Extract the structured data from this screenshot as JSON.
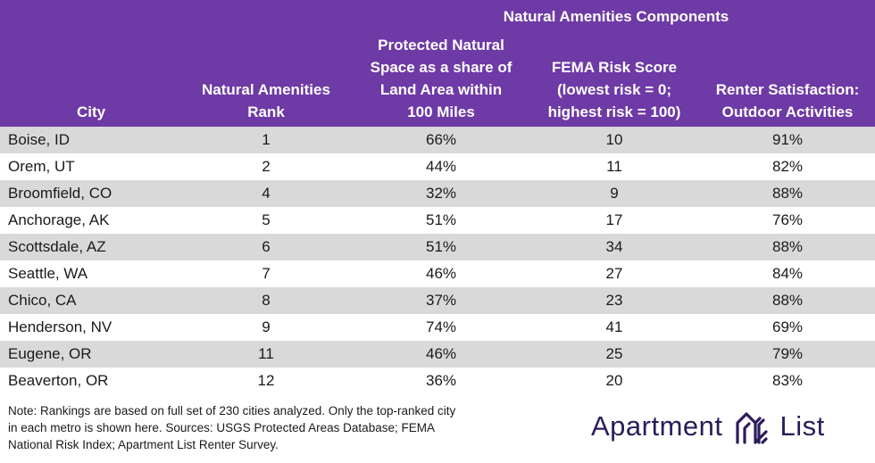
{
  "header": {
    "super_label": "Natural Amenities Components",
    "columns": [
      [
        "City"
      ],
      [
        "Natural Amenities",
        "Rank"
      ],
      [
        "Protected Natural",
        "Space as a share of",
        "Land Area within",
        "100 Miles"
      ],
      [
        "FEMA Risk Score",
        "(lowest risk = 0;",
        "highest risk = 100)"
      ],
      [
        "Renter Satisfaction:",
        "Outdoor Activities"
      ]
    ]
  },
  "rows": [
    [
      "Boise, ID",
      "1",
      "66%",
      "10",
      "91%"
    ],
    [
      "Orem, UT",
      "2",
      "44%",
      "11",
      "82%"
    ],
    [
      "Broomfield, CO",
      "4",
      "32%",
      "9",
      "88%"
    ],
    [
      "Anchorage, AK",
      "5",
      "51%",
      "17",
      "76%"
    ],
    [
      "Scottsdale, AZ",
      "6",
      "51%",
      "34",
      "88%"
    ],
    [
      "Seattle, WA",
      "7",
      "46%",
      "27",
      "84%"
    ],
    [
      "Chico, CA",
      "8",
      "37%",
      "23",
      "88%"
    ],
    [
      "Henderson, NV",
      "9",
      "74%",
      "41",
      "69%"
    ],
    [
      "Eugene, OR",
      "11",
      "46%",
      "25",
      "79%"
    ],
    [
      "Beaverton, OR",
      "12",
      "36%",
      "20",
      "83%"
    ]
  ],
  "note": {
    "lines": [
      "Note: Rankings are based on full set of 230 cities analyzed. Only the top-ranked city",
      "in each metro is shown here. Sources: USGS Protected Areas Database; FEMA",
      "National Risk Index; Apartment List Renter Survey."
    ]
  },
  "logo": {
    "word_left": "Apartment",
    "word_right": "List",
    "icon": "apartment-list-logo-icon",
    "color": "#2b1c5c"
  },
  "colors": {
    "header_bg": "#6e3aa5",
    "stripe": "#d9d9d9"
  }
}
